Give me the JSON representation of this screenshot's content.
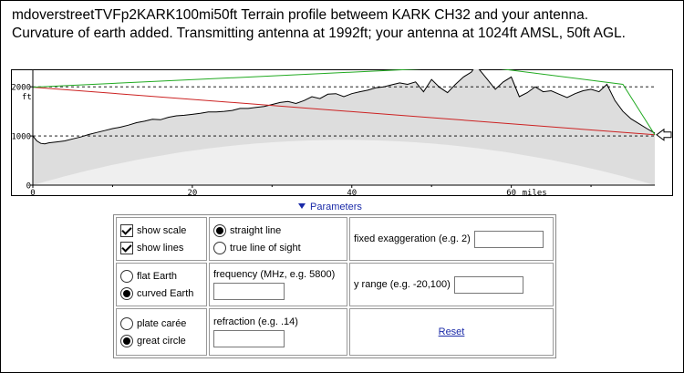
{
  "title": {
    "line1": "mdoverstreetTVFp2KARK100mi50ft  Terrain profile betweem KARK CH32 and your antenna.",
    "line2": "Curvature of earth added. Transmitting antenna at 1992ft; your antenna at 1024ft AMSL, 50ft AGL."
  },
  "chart_data": {
    "type": "area",
    "title": "",
    "xlabel": "miles",
    "ylabel": "ft",
    "xlim": [
      0,
      78
    ],
    "ylim": [
      0,
      2300
    ],
    "x_ticks": [
      "0",
      "20",
      "40",
      "60"
    ],
    "y_ticks": [
      "0",
      "1000",
      "2000"
    ],
    "y_unit_label": "ft",
    "x_unit_label": "miles",
    "dashed_reference_lines": [
      1000,
      2000
    ],
    "transmitter_height_ft": 1992,
    "receiver_height_ft": 1024,
    "terrain": {
      "x": [
        0,
        0.5,
        1,
        1.5,
        2,
        3,
        4,
        5,
        6,
        7,
        8,
        9,
        10,
        11,
        12,
        13,
        14,
        15,
        16,
        17,
        18,
        19,
        20,
        21,
        22,
        23,
        24,
        25,
        26,
        27,
        28,
        29,
        30,
        31,
        32,
        33,
        34,
        35,
        36,
        37,
        38,
        39,
        40,
        41,
        42,
        43,
        44,
        45,
        46,
        47,
        48,
        49,
        50,
        51,
        52,
        53,
        54,
        55,
        55.5,
        56,
        57,
        58,
        59,
        60,
        61,
        62,
        63,
        64,
        65,
        66,
        67,
        68,
        69,
        70,
        71,
        72,
        73,
        74,
        75,
        76,
        77,
        78
      ],
      "y": [
        1000,
        900,
        850,
        840,
        860,
        880,
        900,
        940,
        980,
        1030,
        1070,
        1110,
        1150,
        1180,
        1220,
        1270,
        1300,
        1340,
        1330,
        1380,
        1410,
        1420,
        1440,
        1460,
        1490,
        1490,
        1500,
        1520,
        1560,
        1560,
        1580,
        1600,
        1640,
        1680,
        1700,
        1660,
        1720,
        1800,
        1760,
        1850,
        1860,
        1800,
        1860,
        1900,
        1930,
        1980,
        2000,
        2040,
        2080,
        2050,
        2100,
        1900,
        2150,
        1990,
        1880,
        2050,
        2200,
        2300,
        2420,
        2350,
        2150,
        1950,
        2100,
        2200,
        1800,
        1880,
        2000,
        1900,
        1920,
        1850,
        1780,
        1860,
        1920,
        1950,
        1900,
        2050,
        1720,
        1500,
        1350,
        1250,
        1150,
        1060
      ]
    },
    "earth_curve_peak_ft": 920,
    "series": [
      {
        "name": "",
        "style": "straight line of sight",
        "x": [
          0,
          78
        ],
        "y": [
          1992,
          1024
        ]
      },
      {
        "name": "",
        "style": "clearance line",
        "x": [
          0,
          56,
          74,
          78
        ],
        "y": [
          1992,
          2420,
          2050,
          1024
        ]
      }
    ],
    "colors": {
      "terrain_fill": "#dddddd",
      "terrain_line": "#000000",
      "curvature_fill": "#efefef",
      "los_line": "#cc2222",
      "clearance_line": "#22aa22"
    },
    "grid": false,
    "legend": "none"
  },
  "params": {
    "toggle_label": "Parameters",
    "show_scale_label": "show scale",
    "show_lines_label": "show lines",
    "straight_line_label": "straight line",
    "true_line_label": "true line of sight",
    "fixed_exag_label": "fixed exaggeration (e.g. 2)",
    "flat_earth_label": "flat Earth",
    "curved_earth_label": "curved Earth",
    "frequency_label": "frequency (MHz, e.g. 5800)",
    "y_range_label": "y range (e.g. -20,100)",
    "plate_caree_label": "plate carée",
    "great_circle_label": "great circle",
    "refraction_label": "refraction (e.g. .14)",
    "reset_label": "Reset"
  }
}
